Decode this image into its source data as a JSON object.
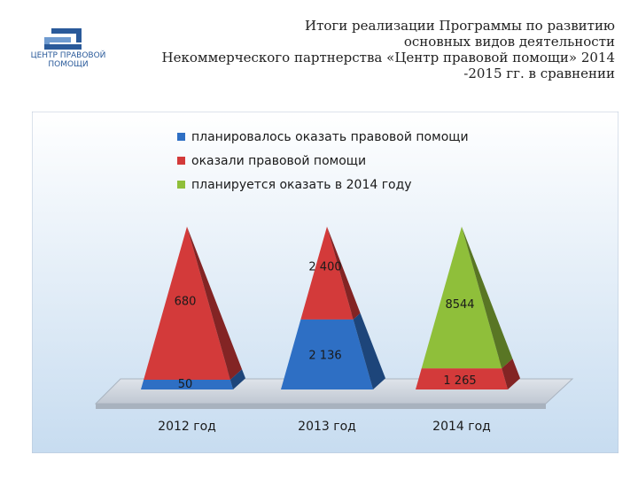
{
  "logo": {
    "text_line1": "ЦЕНТР ПРАВОВОЙ",
    "text_line2": "ПОМОЩИ"
  },
  "title_lines": [
    "Итоги реализации Программы по развитию",
    "основных видов деятельности",
    "Некоммерческого партнерства «Центр правовой помощи» 2014",
    "-2015 гг. в сравнении"
  ],
  "chart_data": {
    "type": "bar",
    "shape": "3d-pyramid-stacked",
    "categories": [
      "2012 год",
      "2013 год",
      "2014 год"
    ],
    "series": [
      {
        "name": "планировалось оказать правовой помощи",
        "color": "#2e6fc4",
        "values": [
          50,
          2136,
          null
        ],
        "labels": [
          "50",
          "2 136",
          ""
        ]
      },
      {
        "name": "оказали правовой помощи",
        "color": "#d33a3a",
        "values": [
          680,
          2400,
          1265
        ],
        "labels": [
          "680",
          "2 400",
          "1 265"
        ]
      },
      {
        "name": "планируется оказать в 2014 году",
        "color": "#8fbf3a",
        "values": [
          null,
          null,
          8544
        ],
        "labels": [
          "",
          "",
          "8544"
        ]
      }
    ],
    "legend_position": "top",
    "grid": false
  }
}
